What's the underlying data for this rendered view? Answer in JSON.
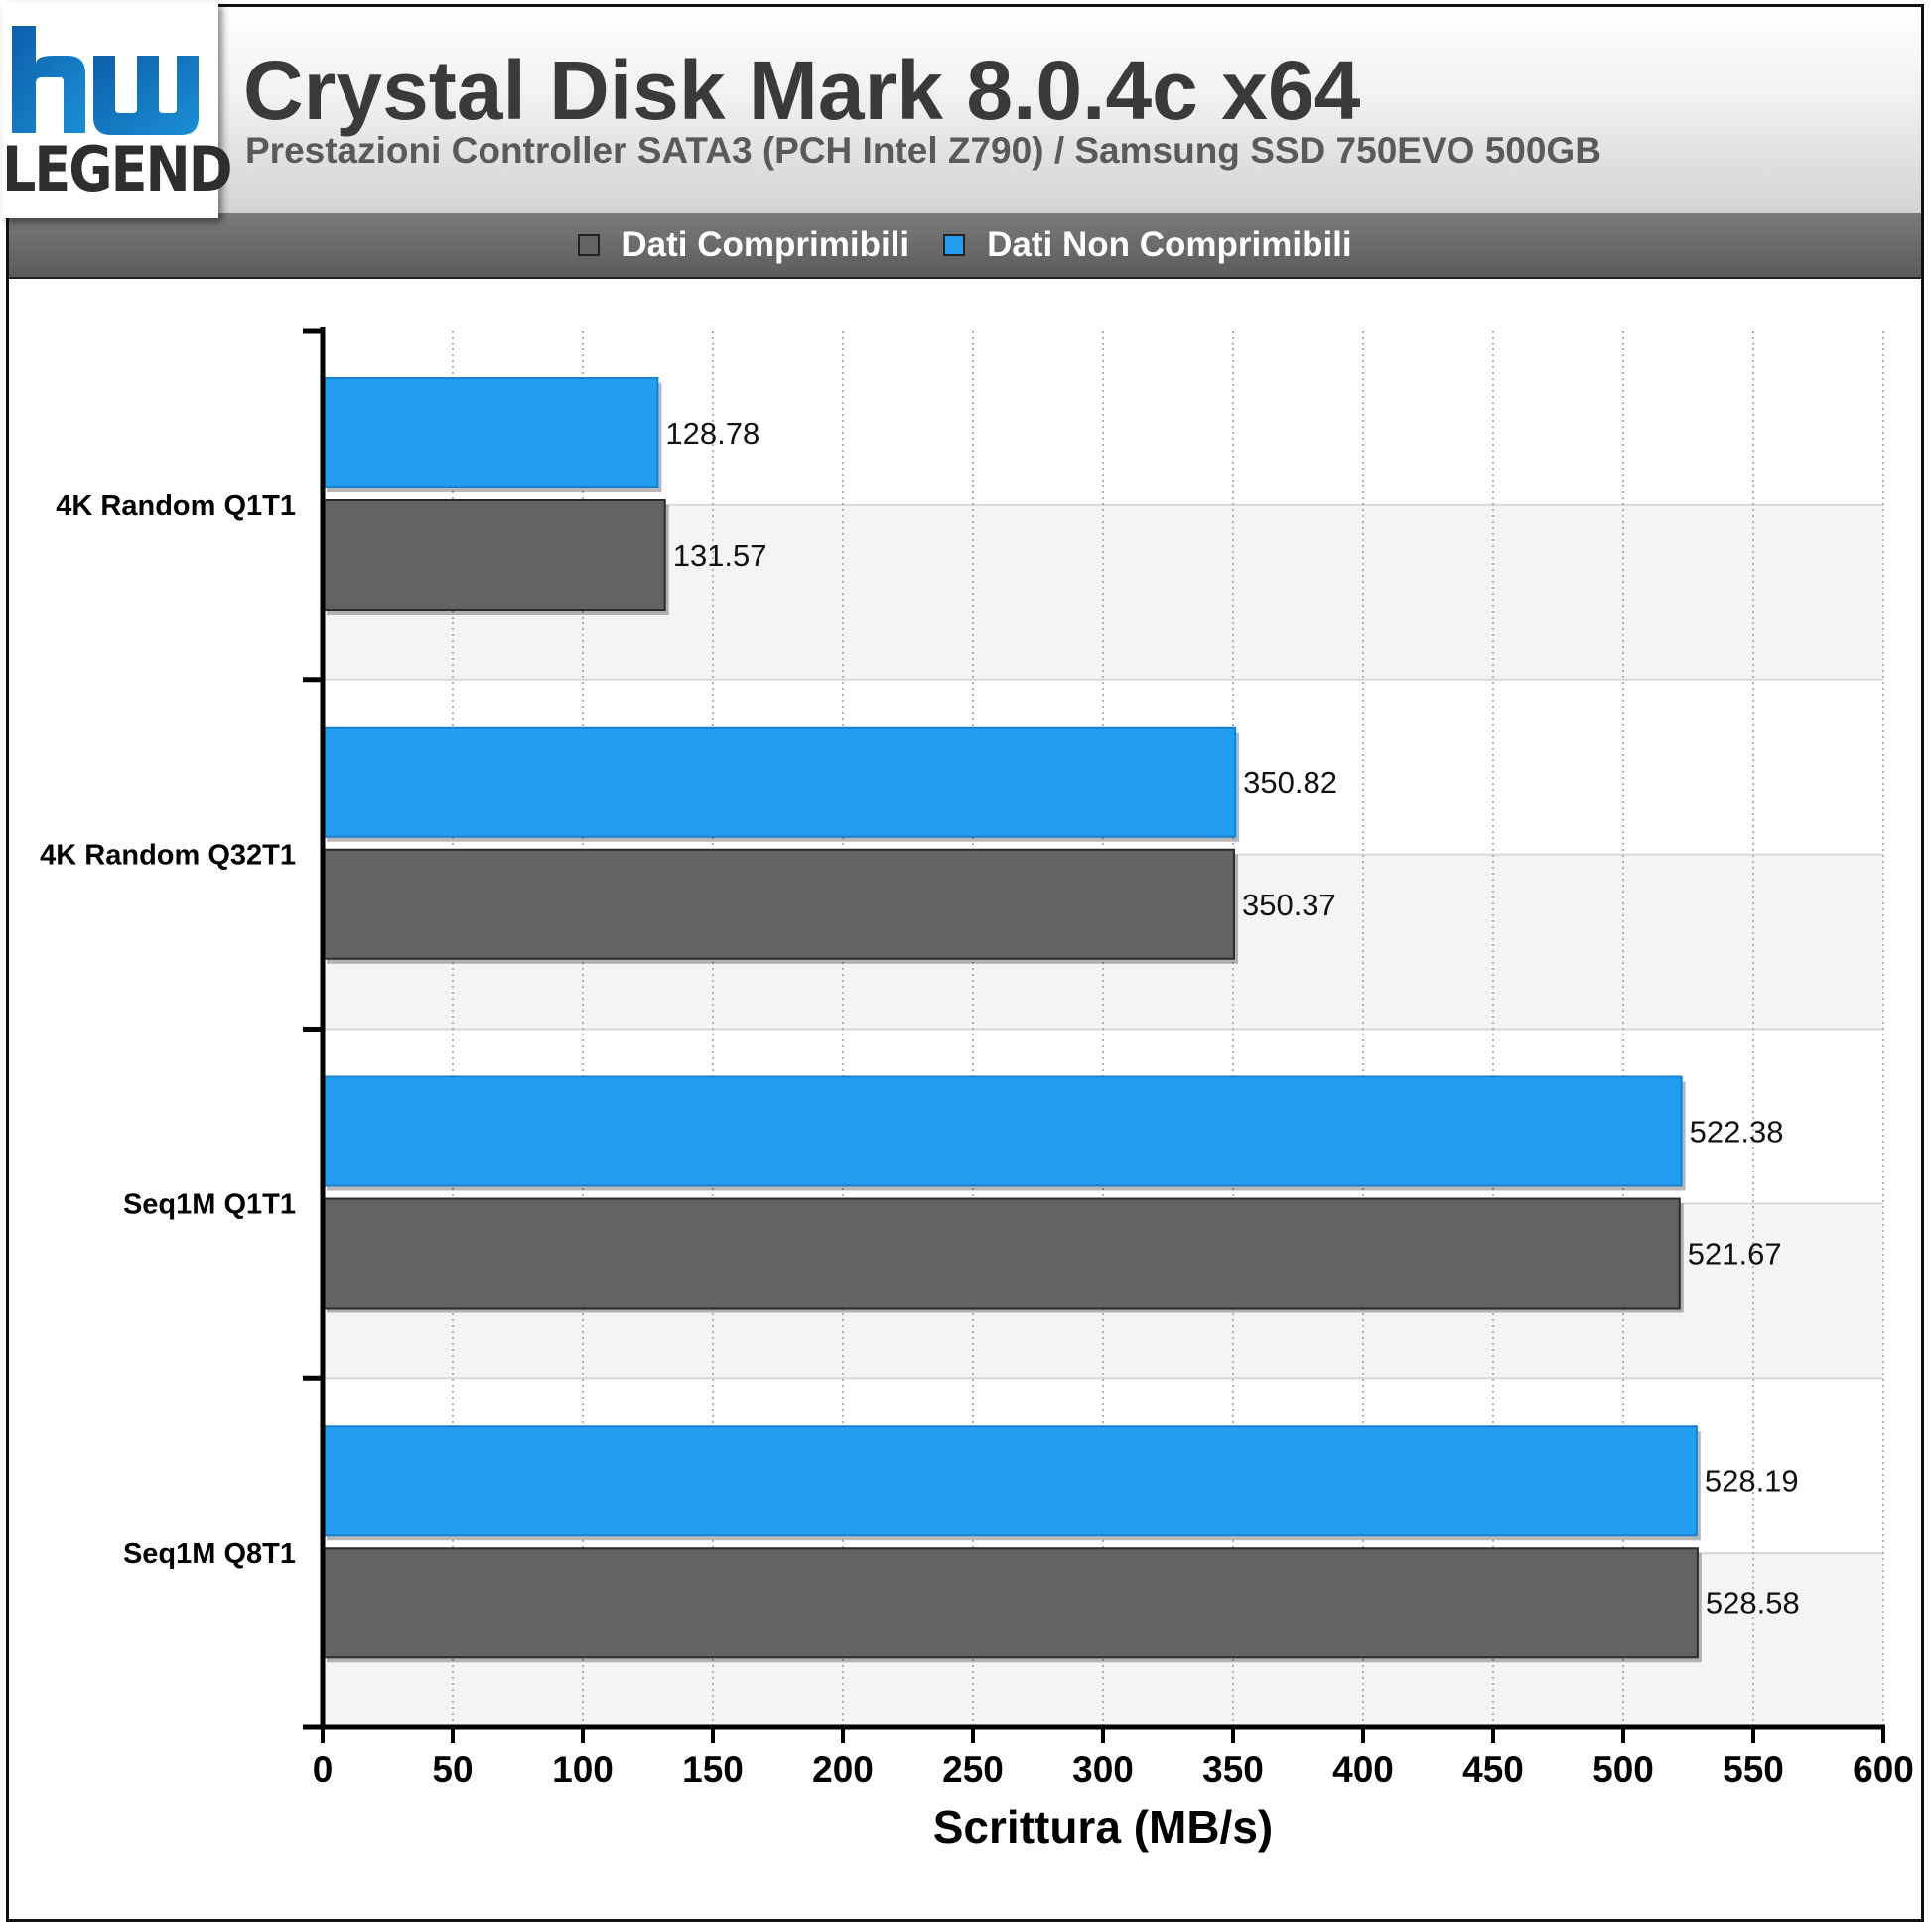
{
  "logo": {
    "mark": "hw",
    "word": "LEGEND",
    "colors": [
      "#1a8fd6",
      "#0d5fa8"
    ]
  },
  "header": {
    "title": "Crystal Disk Mark 8.0.4c x64",
    "subtitle": "Prestazioni Controller SATA3 (PCH Intel Z790) / Samsung SSD 750EVO 500GB"
  },
  "legend": {
    "items": [
      {
        "label": "Dati Comprimibili",
        "color": "#636363"
      },
      {
        "label": "Dati Non Comprimibili",
        "color": "#229df0"
      }
    ]
  },
  "chart_data": {
    "type": "bar",
    "orientation": "horizontal",
    "categories": [
      "4K Random Q1T1",
      "4K Random Q32T1",
      "Seq1M Q1T1",
      "Seq1M Q8T1"
    ],
    "series": [
      {
        "name": "Dati Non Comprimibili",
        "color": "#229df0",
        "values": [
          128.78,
          350.82,
          522.38,
          528.19
        ],
        "labels": [
          "128.78",
          "350.82",
          "522.38",
          "528.19"
        ]
      },
      {
        "name": "Dati Comprimibili",
        "color": "#636363",
        "values": [
          131.57,
          350.37,
          521.67,
          528.58
        ],
        "labels": [
          "131.57",
          "350.37",
          "521.67",
          "528.58"
        ]
      }
    ],
    "xlabel": "Scrittura (MB/s)",
    "ylabel": "",
    "xlim": [
      0,
      600
    ],
    "xticks": [
      0,
      50,
      100,
      150,
      200,
      250,
      300,
      350,
      400,
      450,
      500,
      550,
      600
    ],
    "grid": true,
    "legend_position": "top"
  }
}
